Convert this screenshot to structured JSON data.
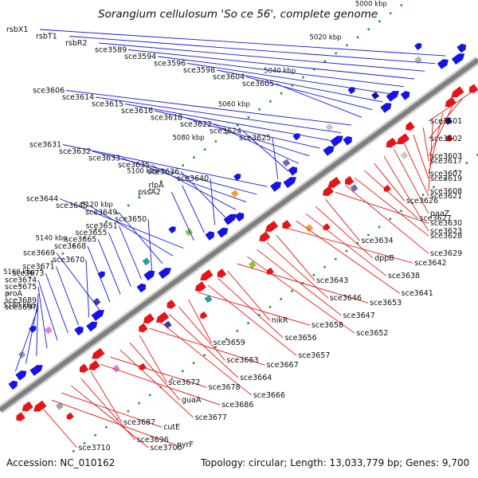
{
  "title": "Sorangium cellulosum 'So ce 56', complete genome",
  "footer": {
    "accession": "Accession: NC_010162",
    "topology": "Topology: circular; Length: 13,033,779 bp; Genes: 9,700"
  },
  "colors": {
    "forward_strand": "#1414e6",
    "reverse_strand": "#e61414",
    "axis": "#7f7f7f",
    "dots": "#2a9a2a"
  },
  "scale_labels": [
    {
      "text": "5000 kbp",
      "value": 5000
    },
    {
      "text": "5020 kbp",
      "value": 5020
    },
    {
      "text": "5040 kbp",
      "value": 5040
    },
    {
      "text": "5060 kbp",
      "value": 5060
    },
    {
      "text": "5080 kbp",
      "value": 5080
    },
    {
      "text": "5100 kbp",
      "value": 5100
    },
    {
      "text": "5120 kbp",
      "value": 5120
    },
    {
      "text": "5140 kbp",
      "value": 5140
    },
    {
      "text": "5160 kbp",
      "value": 5160
    },
    {
      "text": "5180 kbp",
      "value": 5180
    }
  ],
  "forward_genes": [
    "rsbX1",
    "rsbT1",
    "rsbR2",
    "sce3589",
    "sce3594",
    "sce3596",
    "sce3598",
    "sce3604",
    "sce3605",
    "sce3606",
    "sce3614",
    "sce3615",
    "sce3616",
    "sce3618",
    "sce3622",
    "sce3624",
    "sce3625",
    "sce3631",
    "sce3632",
    "sce3633",
    "sce3635",
    "sce3636",
    "sce3640",
    "rlpA",
    "pssA2",
    "sce3644",
    "sce3645",
    "sce3649",
    "sce3650",
    "sce3651",
    "sce3655",
    "sce3665",
    "sce3668",
    "sce3669",
    "sce3670",
    "sce3671",
    "sce3673",
    "sce3674",
    "sce3675",
    "proA",
    "sce3689",
    "sce3697"
  ],
  "reverse_genes": [
    "sce3601",
    "sce3602",
    "sce3603",
    "sce3607",
    "sce3608",
    "sce3617",
    "sce3619",
    "sce3621",
    "paaZ",
    "sce3623",
    "sce3626",
    "sce3627",
    "sce3628",
    "sce3629",
    "sce3630",
    "sce3634",
    "dppB",
    "sce3638",
    "sce3641",
    "sce3642",
    "sce3643",
    "sce3646",
    "sce3647",
    "sce3652",
    "sce3653",
    "nikR",
    "sce3656",
    "sce3657",
    "sce3658",
    "sce3659",
    "sce3663",
    "sce3664",
    "sce3666",
    "sce3667",
    "sce3672",
    "guaA",
    "sce3677",
    "sce3678",
    "sce3686",
    "sce3687",
    "sce3696",
    "sce3700",
    "cutE",
    "pyrF",
    "sce3710"
  ]
}
